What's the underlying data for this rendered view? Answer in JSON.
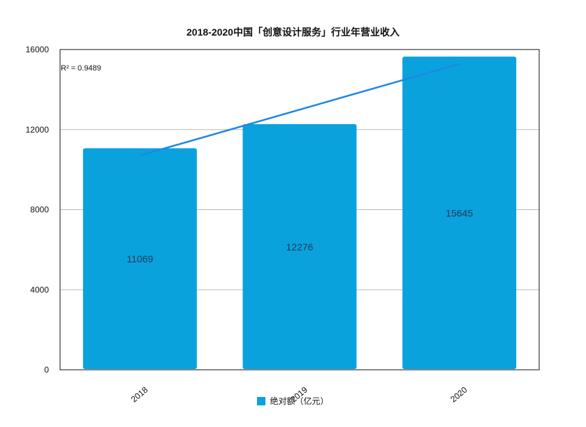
{
  "chart_data": {
    "type": "bar",
    "title": "2018-2020中国「创意设计服务」行业年营业收入",
    "categories": [
      "2018",
      "2019",
      "2020"
    ],
    "series": [
      {
        "name": "绝对额（亿元）",
        "values": [
          11069,
          12276,
          15645
        ],
        "color": "#0aa2dc"
      }
    ],
    "ylim": [
      0,
      16000
    ],
    "yticks": [
      0,
      4000,
      8000,
      12000,
      16000
    ],
    "grid": true,
    "legend_position": "bottom",
    "trendline": {
      "type": "linear",
      "color": "#1e88e5",
      "r2_label": "R² = 0.9489"
    }
  }
}
